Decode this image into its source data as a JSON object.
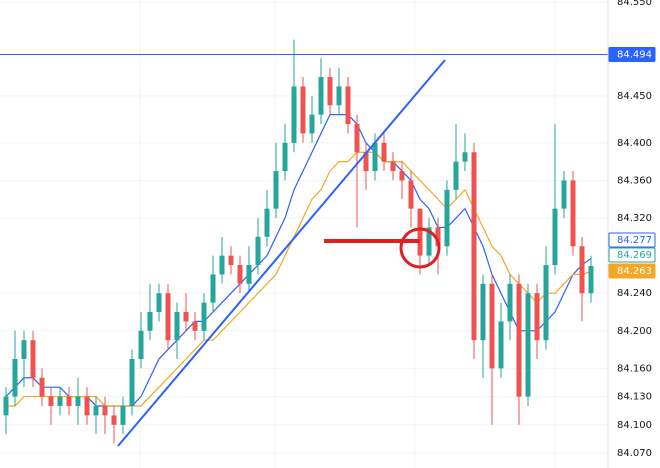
{
  "chart_data": {
    "type": "candlestick",
    "ylim": [
      84.054,
      84.552
    ],
    "yticks": [
      {
        "value": 84.55,
        "label": "84.550"
      },
      {
        "value": 84.45,
        "label": "84.450"
      },
      {
        "value": 84.4,
        "label": "84.400"
      },
      {
        "value": 84.36,
        "label": "84.360"
      },
      {
        "value": 84.32,
        "label": "84.320"
      },
      {
        "value": 84.24,
        "label": "84.240"
      },
      {
        "value": 84.2,
        "label": "84.200"
      },
      {
        "value": 84.16,
        "label": "84.160"
      },
      {
        "value": 84.13,
        "label": "84.130"
      },
      {
        "value": 84.1,
        "label": "84.100"
      },
      {
        "value": 84.07,
        "label": "84.070"
      }
    ],
    "grid": true,
    "up_color": "#26a69a",
    "down_color": "#ef5350",
    "hline": 84.494,
    "hline_color": "#2962ff",
    "open": [
      84.11,
      84.13,
      84.17,
      84.19,
      84.15,
      84.13,
      84.12,
      84.13,
      84.12,
      84.13,
      84.11,
      84.12,
      84.11,
      84.1,
      84.12,
      84.17,
      84.2,
      84.22,
      84.24,
      84.19,
      84.22,
      84.21,
      84.2,
      84.23,
      84.26,
      84.28,
      84.27,
      84.25,
      84.27,
      84.3,
      84.33,
      84.37,
      84.4,
      84.46,
      84.41,
      84.43,
      84.47,
      84.44,
      84.46,
      84.42,
      84.39,
      84.37,
      84.4,
      84.38,
      84.37,
      84.36,
      84.33,
      84.28,
      84.31,
      84.29,
      84.35,
      84.38,
      84.39,
      84.19,
      84.25,
      84.16,
      84.21,
      84.25,
      84.13,
      84.24,
      84.19,
      84.27,
      84.33,
      84.36,
      84.29,
      84.24
    ],
    "high": [
      84.14,
      84.2,
      84.2,
      84.2,
      84.16,
      84.14,
      84.14,
      84.14,
      84.15,
      84.14,
      84.13,
      84.13,
      84.12,
      84.13,
      84.18,
      84.22,
      84.25,
      84.25,
      84.25,
      84.23,
      84.24,
      84.22,
      84.24,
      84.28,
      84.3,
      84.29,
      84.28,
      84.29,
      84.32,
      84.35,
      84.4,
      84.42,
      84.51,
      84.47,
      84.45,
      84.49,
      84.48,
      84.48,
      84.47,
      84.43,
      84.4,
      84.41,
      84.41,
      84.39,
      84.38,
      84.37,
      84.33,
      84.32,
      84.32,
      84.36,
      84.42,
      84.41,
      84.4,
      84.26,
      84.26,
      84.23,
      84.26,
      84.26,
      84.25,
      84.25,
      84.29,
      84.42,
      84.37,
      84.37,
      84.3,
      84.28
    ],
    "low": [
      84.09,
      84.12,
      84.14,
      84.14,
      84.12,
      84.1,
      84.11,
      84.11,
      84.1,
      84.1,
      84.09,
      84.09,
      84.08,
      84.09,
      84.11,
      84.16,
      84.19,
      84.21,
      84.18,
      84.17,
      84.2,
      84.19,
      84.19,
      84.22,
      84.25,
      84.26,
      84.24,
      84.24,
      84.26,
      84.29,
      84.32,
      84.36,
      84.39,
      84.4,
      84.4,
      84.42,
      84.43,
      84.43,
      84.41,
      84.31,
      84.35,
      84.36,
      84.37,
      84.36,
      84.34,
      84.31,
      84.26,
      84.27,
      84.26,
      84.28,
      84.34,
      84.37,
      84.17,
      84.15,
      84.1,
      84.15,
      84.19,
      84.1,
      84.12,
      84.17,
      84.18,
      84.26,
      84.32,
      84.28,
      84.21,
      84.23
    ],
    "close": [
      84.13,
      84.17,
      84.19,
      84.15,
      84.13,
      84.12,
      84.13,
      84.12,
      84.13,
      84.11,
      84.12,
      84.11,
      84.1,
      84.12,
      84.17,
      84.2,
      84.22,
      84.24,
      84.19,
      84.22,
      84.21,
      84.2,
      84.23,
      84.26,
      84.28,
      84.27,
      84.25,
      84.27,
      84.3,
      84.33,
      84.37,
      84.4,
      84.46,
      84.41,
      84.43,
      84.47,
      84.44,
      84.46,
      84.42,
      84.39,
      84.37,
      84.4,
      84.38,
      84.37,
      84.36,
      84.33,
      84.28,
      84.31,
      84.29,
      84.35,
      84.38,
      84.39,
      84.19,
      84.25,
      84.16,
      84.21,
      84.25,
      84.13,
      84.24,
      84.19,
      84.27,
      84.33,
      84.36,
      84.29,
      84.24,
      84.269
    ],
    "lines": [
      {
        "color": "#2962ff",
        "values": [
          84.13,
          84.14,
          84.15,
          84.15,
          84.14,
          84.14,
          84.14,
          84.13,
          84.13,
          84.13,
          84.12,
          84.12,
          84.12,
          84.12,
          84.12,
          84.13,
          84.15,
          84.17,
          84.18,
          84.19,
          84.2,
          84.21,
          84.21,
          84.22,
          84.23,
          84.24,
          84.25,
          84.26,
          84.27,
          84.28,
          84.3,
          84.32,
          84.35,
          84.37,
          84.39,
          84.41,
          84.43,
          84.43,
          84.43,
          84.42,
          84.4,
          84.39,
          84.38,
          84.38,
          84.37,
          84.36,
          84.34,
          84.33,
          84.31,
          84.31,
          84.32,
          84.33,
          84.31,
          84.29,
          84.26,
          84.24,
          84.22,
          84.2,
          84.2,
          84.2,
          84.21,
          84.22,
          84.24,
          84.26,
          84.27,
          84.277
        ]
      },
      {
        "color": "#f5a623",
        "values": [
          84.12,
          84.12,
          84.13,
          84.13,
          84.13,
          84.13,
          84.13,
          84.13,
          84.13,
          84.13,
          84.13,
          84.12,
          84.12,
          84.12,
          84.12,
          84.12,
          84.13,
          84.14,
          84.15,
          84.16,
          84.17,
          84.18,
          84.19,
          84.19,
          84.2,
          84.21,
          84.22,
          84.23,
          84.24,
          84.25,
          84.26,
          84.28,
          84.3,
          84.32,
          84.34,
          84.35,
          84.37,
          84.38,
          84.38,
          84.39,
          84.39,
          84.39,
          84.38,
          84.38,
          84.38,
          84.37,
          84.36,
          84.35,
          84.34,
          84.33,
          84.34,
          84.35,
          84.33,
          84.31,
          84.29,
          84.28,
          84.26,
          84.25,
          84.24,
          84.23,
          84.24,
          84.24,
          84.25,
          84.26,
          84.26,
          84.263
        ]
      }
    ]
  }
}
